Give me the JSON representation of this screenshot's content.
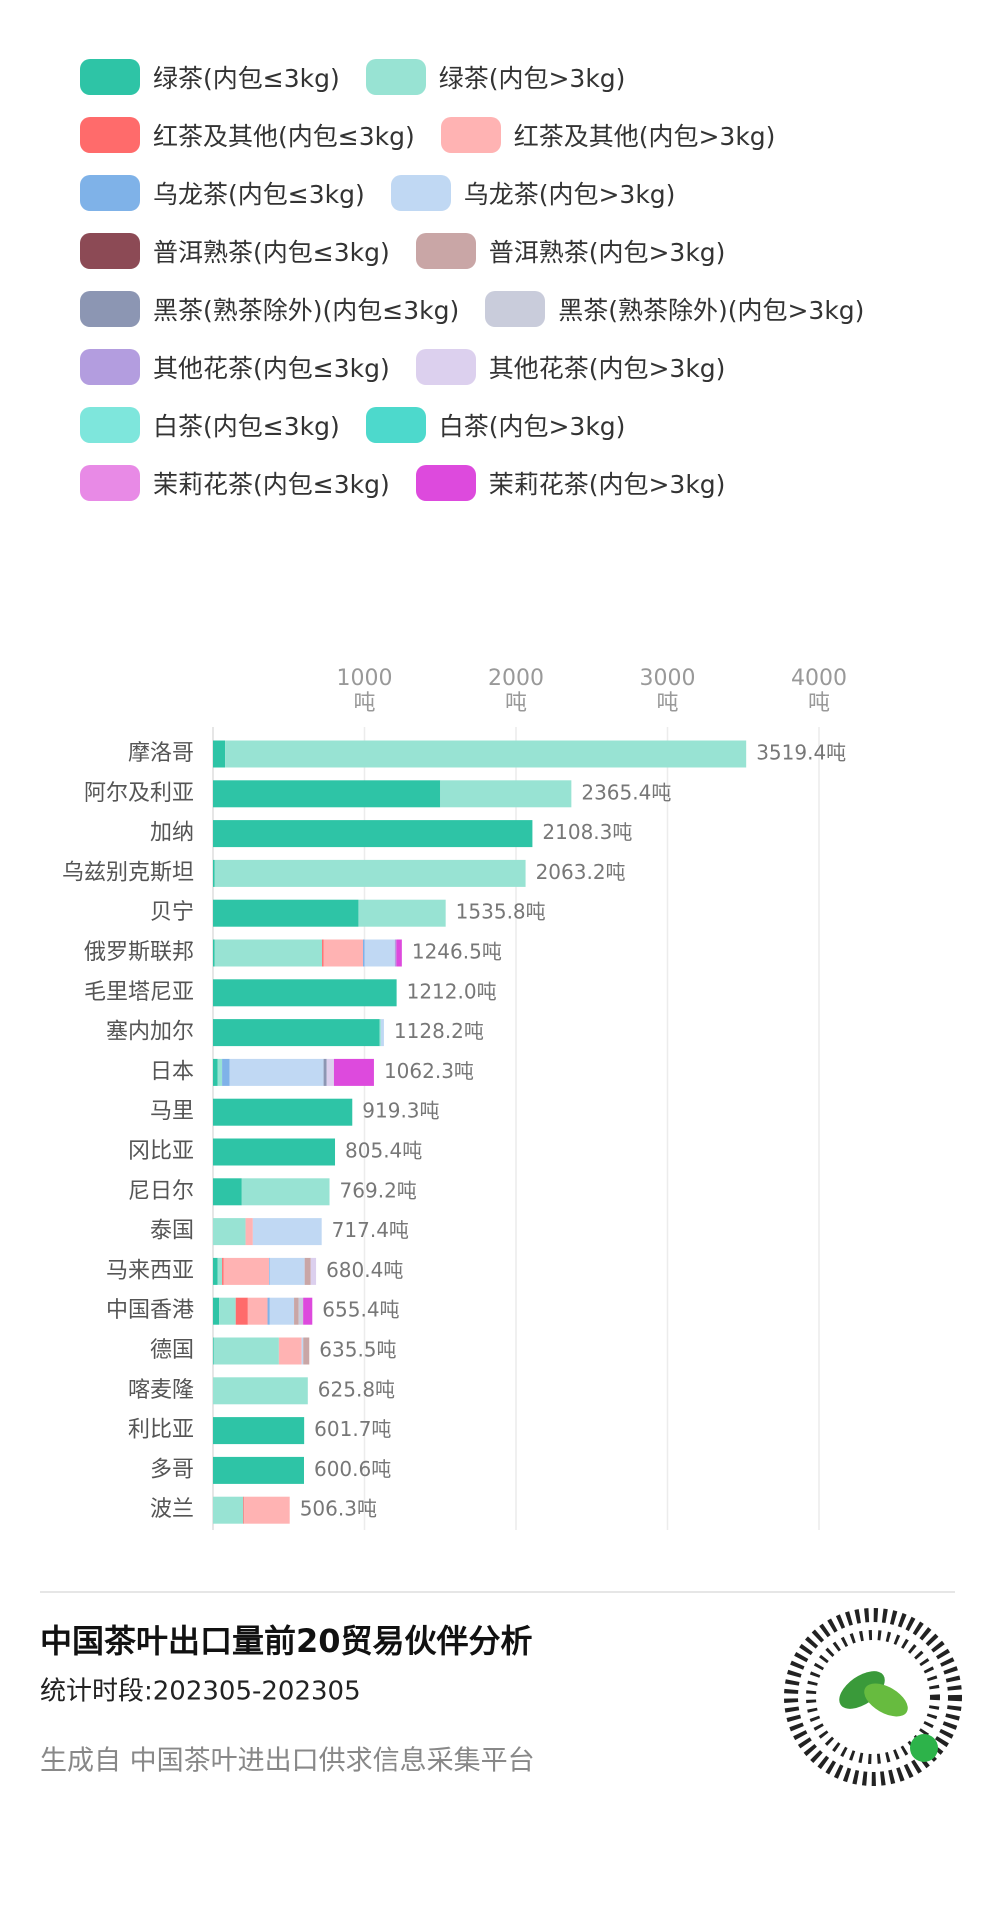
{
  "chart_data": {
    "type": "bar",
    "orientation": "horizontal",
    "categories": [
      "摩洛哥",
      "阿尔及利亚",
      "加纳",
      "乌兹别克斯坦",
      "贝宁",
      "俄罗斯联邦",
      "毛里塔尼亚",
      "塞内加尔",
      "日本",
      "马里",
      "冈比亚",
      "尼日尔",
      "泰国",
      "马来西亚",
      "中国香港",
      "德国",
      "喀麦隆",
      "利比亚",
      "多哥",
      "波兰"
    ],
    "series": [
      {
        "name": "绿茶(内包≤3kg)",
        "color": "#2ec4a6",
        "values": [
          80,
          1500,
          2108.3,
          10,
          960,
          10,
          1212.0,
          1100,
          30,
          919.3,
          805.4,
          190,
          0,
          30,
          40,
          5,
          0,
          601.7,
          600.6,
          0
        ]
      },
      {
        "name": "绿茶(内包>3kg)",
        "color": "#98e3d3",
        "values": [
          3439.4,
          865.4,
          0,
          2053.2,
          575.8,
          710,
          0,
          8.2,
          30,
          0,
          0,
          579.2,
          215,
          30,
          110,
          430,
          625.8,
          0,
          0,
          200
        ]
      },
      {
        "name": "红茶及其他(内包≤3kg)",
        "color": "#ff6b6b",
        "values": [
          0,
          0,
          0,
          0,
          0,
          10,
          0,
          0,
          0,
          0,
          0,
          0,
          0,
          10,
          80,
          0,
          0,
          0,
          0,
          5
        ]
      },
      {
        "name": "红茶及其他(内包>3kg)",
        "color": "#ffb3b3",
        "values": [
          0,
          0,
          0,
          0,
          0,
          260,
          0,
          0,
          0,
          0,
          0,
          0,
          48,
          300,
          130,
          150,
          0,
          0,
          0,
          301.3
        ]
      },
      {
        "name": "乌龙茶(内包≤3kg)",
        "color": "#7fb2e8",
        "values": [
          0,
          0,
          0,
          0,
          0,
          10,
          0,
          0,
          50,
          0,
          0,
          0,
          0,
          5,
          15,
          0,
          0,
          0,
          0,
          0
        ]
      },
      {
        "name": "乌龙茶(内包>3kg)",
        "color": "#c0d8f3",
        "values": [
          0,
          0,
          0,
          0,
          0,
          200,
          0,
          20,
          620,
          0,
          0,
          0,
          454.4,
          230,
          160,
          10.5,
          0,
          0,
          0,
          0
        ]
      },
      {
        "name": "普洱熟茶(内包≤3kg)",
        "color": "#8c4a55",
        "values": [
          0,
          0,
          0,
          0,
          0,
          0,
          0,
          0,
          0,
          0,
          0,
          0,
          0,
          0,
          0,
          0,
          0,
          0,
          0,
          0
        ]
      },
      {
        "name": "普洱熟茶(内包>3kg)",
        "color": "#c9a6a6",
        "values": [
          0,
          0,
          0,
          0,
          0,
          0,
          0,
          0,
          0,
          0,
          0,
          0,
          0,
          40,
          30,
          40,
          0,
          0,
          0,
          0
        ]
      },
      {
        "name": "黑茶(熟茶除外)(内包≤3kg)",
        "color": "#8c96b3",
        "values": [
          0,
          0,
          0,
          0,
          0,
          0,
          0,
          0,
          20.3,
          0,
          0,
          0,
          0,
          0,
          0,
          0,
          0,
          0,
          0,
          0
        ]
      },
      {
        "name": "黑茶(熟茶除外)(内包>3kg)",
        "color": "#c9ccdb",
        "values": [
          0,
          0,
          0,
          0,
          0,
          0,
          0,
          0,
          0,
          0,
          0,
          0,
          0,
          0,
          30,
          0,
          0,
          0,
          0,
          0
        ]
      },
      {
        "name": "其他花茶(内包≤3kg)",
        "color": "#b39ddf",
        "values": [
          0,
          0,
          0,
          0,
          0,
          10,
          0,
          0,
          0,
          0,
          0,
          0,
          0,
          0,
          0,
          0,
          0,
          0,
          0,
          0
        ]
      },
      {
        "name": "其他花茶(内包>3kg)",
        "color": "#dcd0ee",
        "values": [
          0,
          0,
          0,
          0,
          0,
          0,
          0,
          0,
          48,
          0,
          0,
          0,
          0,
          35.4,
          0,
          0,
          0,
          0,
          0,
          0
        ]
      },
      {
        "name": "白茶(内包≤3kg)",
        "color": "#7ee6dc",
        "values": [
          0,
          0,
          0,
          0,
          0,
          0,
          0,
          0,
          0,
          0,
          0,
          0,
          0,
          0,
          0,
          0,
          0,
          0,
          0,
          0
        ]
      },
      {
        "name": "白茶(内包>3kg)",
        "color": "#4dd9cc",
        "values": [
          0,
          0,
          0,
          0,
          0,
          0,
          0,
          0,
          0,
          0,
          0,
          0,
          0,
          0,
          0,
          0,
          0,
          0,
          0,
          0
        ]
      },
      {
        "name": "茉莉花茶(内包≤3kg)",
        "color": "#e88ae6",
        "values": [
          0,
          0,
          0,
          0,
          0,
          0,
          0,
          0,
          0,
          0,
          0,
          0,
          0,
          0,
          0,
          0,
          0,
          0,
          0,
          0
        ]
      },
      {
        "name": "茉莉花茶(内包>3kg)",
        "color": "#dd4add",
        "values": [
          0,
          0,
          0,
          0,
          0,
          36.5,
          0,
          0,
          264,
          0,
          0,
          0,
          0,
          0,
          60.4,
          0,
          0,
          0,
          0,
          0
        ]
      }
    ],
    "totals": [
      3519.4,
      2365.4,
      2108.3,
      2063.2,
      1535.8,
      1246.5,
      1212.0,
      1128.2,
      1062.3,
      919.3,
      805.4,
      769.2,
      717.4,
      680.4,
      655.4,
      635.5,
      625.8,
      601.7,
      600.6,
      506.3
    ],
    "total_labels": [
      "3519.4吨",
      "2365.4吨",
      "2108.3吨",
      "2063.2吨",
      "1535.8吨",
      "1246.5吨",
      "1212.0吨",
      "1128.2吨",
      "1062.3吨",
      "919.3吨",
      "805.4吨",
      "769.2吨",
      "717.4吨",
      "680.4吨",
      "655.4吨",
      "635.5吨",
      "625.8吨",
      "601.7吨",
      "600.6吨",
      "506.3吨"
    ],
    "xlim": [
      0,
      4000
    ],
    "xticks": [
      {
        "value": 1000,
        "label": "1000\n吨"
      },
      {
        "value": 2000,
        "label": "2000\n吨"
      },
      {
        "value": 3000,
        "label": "3000\n吨"
      },
      {
        "value": 4000,
        "label": "4000\n吨"
      }
    ],
    "grid": true
  },
  "footer": {
    "title": "中国茶叶出口量前20贸易伙伴分析",
    "subtitle": "统计时段:202305-202305",
    "source": "生成自 中国茶叶进出口供求信息采集平台"
  }
}
